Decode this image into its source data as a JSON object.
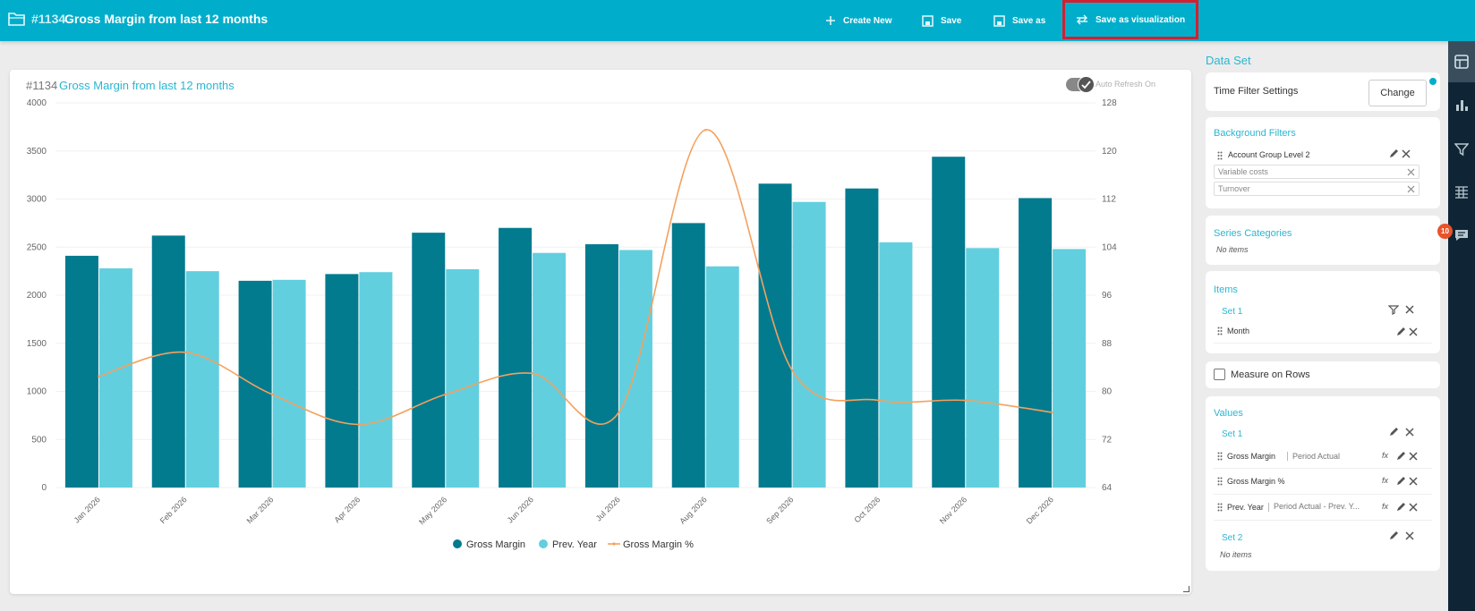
{
  "topbar": {
    "report_number": "#1134",
    "report_title": "Gross Margin from last 12 months",
    "buttons": {
      "create_new": "Create New",
      "save": "Save",
      "save_as": "Save as",
      "save_as_visualization": "Save as visualization"
    },
    "highlight_color": "#d32030",
    "bar_color": "#00aecb"
  },
  "chart_card": {
    "number": "#1134",
    "title": "Gross Margin from last 12 months",
    "auto_refresh_label": "Auto Refresh On",
    "auto_refresh_on": true
  },
  "chart_data": {
    "type": "bar",
    "categories": [
      "Jan 2026",
      "Feb 2026",
      "Mar 2026",
      "Apr 2026",
      "May 2026",
      "Jun 2026",
      "Jul 2026",
      "Aug 2026",
      "Sep 2026",
      "Oct 2026",
      "Nov 2026",
      "Dec 2026"
    ],
    "series": [
      {
        "name": "Gross Margin",
        "type": "bar",
        "axis": "left",
        "color": "#037b8f",
        "values": [
          2410,
          2620,
          2150,
          2220,
          2650,
          2700,
          2530,
          2750,
          3160,
          3110,
          3440,
          3010
        ]
      },
      {
        "name": "Prev. Year",
        "type": "bar",
        "axis": "left",
        "color": "#62cfdf",
        "values": [
          2280,
          2250,
          2160,
          2240,
          2270,
          2440,
          2470,
          2300,
          2970,
          2550,
          2490,
          2480
        ]
      },
      {
        "name": "Gross Margin %",
        "type": "line",
        "axis": "right",
        "color": "#f4a15e",
        "values": [
          82.5,
          86.5,
          79.5,
          74.5,
          79.5,
          83,
          76.5,
          123.5,
          83.5,
          78.5,
          78.5,
          76.5
        ]
      }
    ],
    "y_left": {
      "min": 0,
      "max": 4000,
      "ticks": [
        0,
        500,
        1000,
        1500,
        2000,
        2500,
        3000,
        3500,
        4000
      ]
    },
    "y_right": {
      "min": 64,
      "max": 128,
      "ticks": [
        64,
        72,
        80,
        88,
        96,
        104,
        112,
        120,
        128
      ]
    },
    "legend": [
      "Gross Margin",
      "Prev. Year",
      "Gross Margin %"
    ],
    "legend_position": "bottom-center",
    "grid": true
  },
  "panel": {
    "title": "Data Set",
    "time_filter": {
      "label": "Time Filter Settings",
      "button": "Change"
    },
    "background_filters": {
      "title": "Background Filters",
      "field": "Account Group Level 2",
      "chips": [
        "Variable costs",
        "Turnover"
      ]
    },
    "series_categories": {
      "title": "Series Categories",
      "empty": "No items"
    },
    "items": {
      "title": "Items",
      "set_label": "Set 1",
      "field": "Month"
    },
    "measure_on_rows": {
      "label": "Measure on Rows",
      "checked": false
    },
    "values": {
      "title": "Values",
      "set1_label": "Set 1",
      "rows": [
        {
          "name": "Gross Margin",
          "tag": "Period Actual"
        },
        {
          "name": "Gross Margin %",
          "tag": ""
        },
        {
          "name": "Prev. Year",
          "tag": "Period Actual - Prev. Y..."
        }
      ],
      "set2_label": "Set 2",
      "set2_empty": "No items"
    }
  },
  "sidebar": {
    "icons": [
      "dataset-icon",
      "chart-icon",
      "filter-icon",
      "table-icon",
      "comment-icon"
    ],
    "badge": "10"
  }
}
